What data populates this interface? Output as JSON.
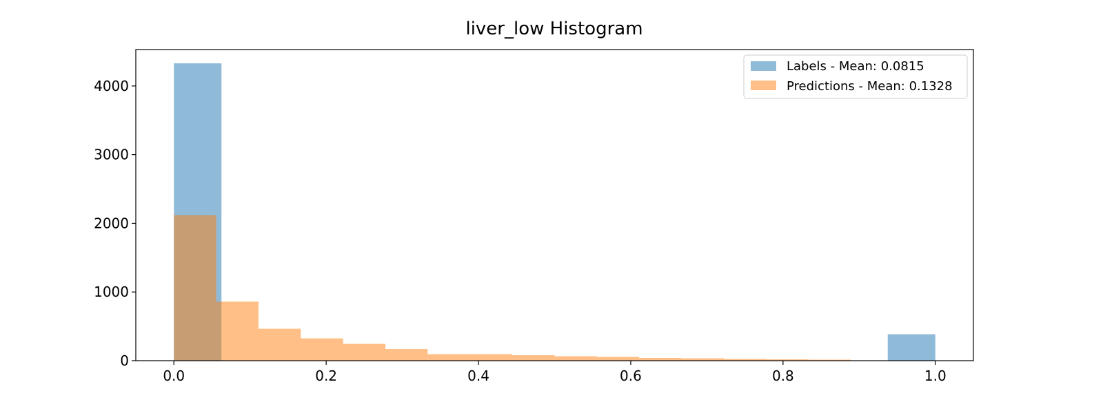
{
  "chart_data": {
    "type": "bar",
    "title": "liver_low Histogram",
    "xlabel": "",
    "ylabel": "",
    "xlim": [
      -0.05,
      1.05
    ],
    "ylim": [
      0,
      4530
    ],
    "xticks": [
      0.0,
      0.2,
      0.4,
      0.6,
      0.8,
      1.0
    ],
    "xtick_labels": [
      "0.0",
      "0.2",
      "0.4",
      "0.6",
      "0.8",
      "1.0"
    ],
    "yticks": [
      0,
      1000,
      2000,
      3000,
      4000
    ],
    "ytick_labels": [
      "0",
      "1000",
      "2000",
      "3000",
      "4000"
    ],
    "grid": false,
    "legend_position": "top-right",
    "series": [
      {
        "name": "Labels - Mean: 0.0815",
        "color": "#1f77b4",
        "opacity": 0.5,
        "bins": [
          {
            "x0": 0.0,
            "x1": 0.0625,
            "count": 4330
          },
          {
            "x0": 0.9375,
            "x1": 1.0,
            "count": 385
          }
        ]
      },
      {
        "name": "Predictions - Mean: 0.1328",
        "color": "#ff7f0e",
        "opacity": 0.5,
        "bins": [
          {
            "x0": 0.0,
            "x1": 0.0556,
            "count": 2120
          },
          {
            "x0": 0.0556,
            "x1": 0.1111,
            "count": 860
          },
          {
            "x0": 0.1111,
            "x1": 0.1667,
            "count": 465
          },
          {
            "x0": 0.1667,
            "x1": 0.2222,
            "count": 325
          },
          {
            "x0": 0.2222,
            "x1": 0.2778,
            "count": 245
          },
          {
            "x0": 0.2778,
            "x1": 0.3333,
            "count": 170
          },
          {
            "x0": 0.3333,
            "x1": 0.3889,
            "count": 95
          },
          {
            "x0": 0.3889,
            "x1": 0.4444,
            "count": 95
          },
          {
            "x0": 0.4444,
            "x1": 0.5,
            "count": 80
          },
          {
            "x0": 0.5,
            "x1": 0.5556,
            "count": 65
          },
          {
            "x0": 0.5556,
            "x1": 0.6111,
            "count": 55
          },
          {
            "x0": 0.6111,
            "x1": 0.6667,
            "count": 40
          },
          {
            "x0": 0.6667,
            "x1": 0.7222,
            "count": 35
          },
          {
            "x0": 0.7222,
            "x1": 0.7778,
            "count": 25
          },
          {
            "x0": 0.7778,
            "x1": 0.8333,
            "count": 20
          },
          {
            "x0": 0.8333,
            "x1": 0.8889,
            "count": 15
          }
        ]
      }
    ]
  }
}
